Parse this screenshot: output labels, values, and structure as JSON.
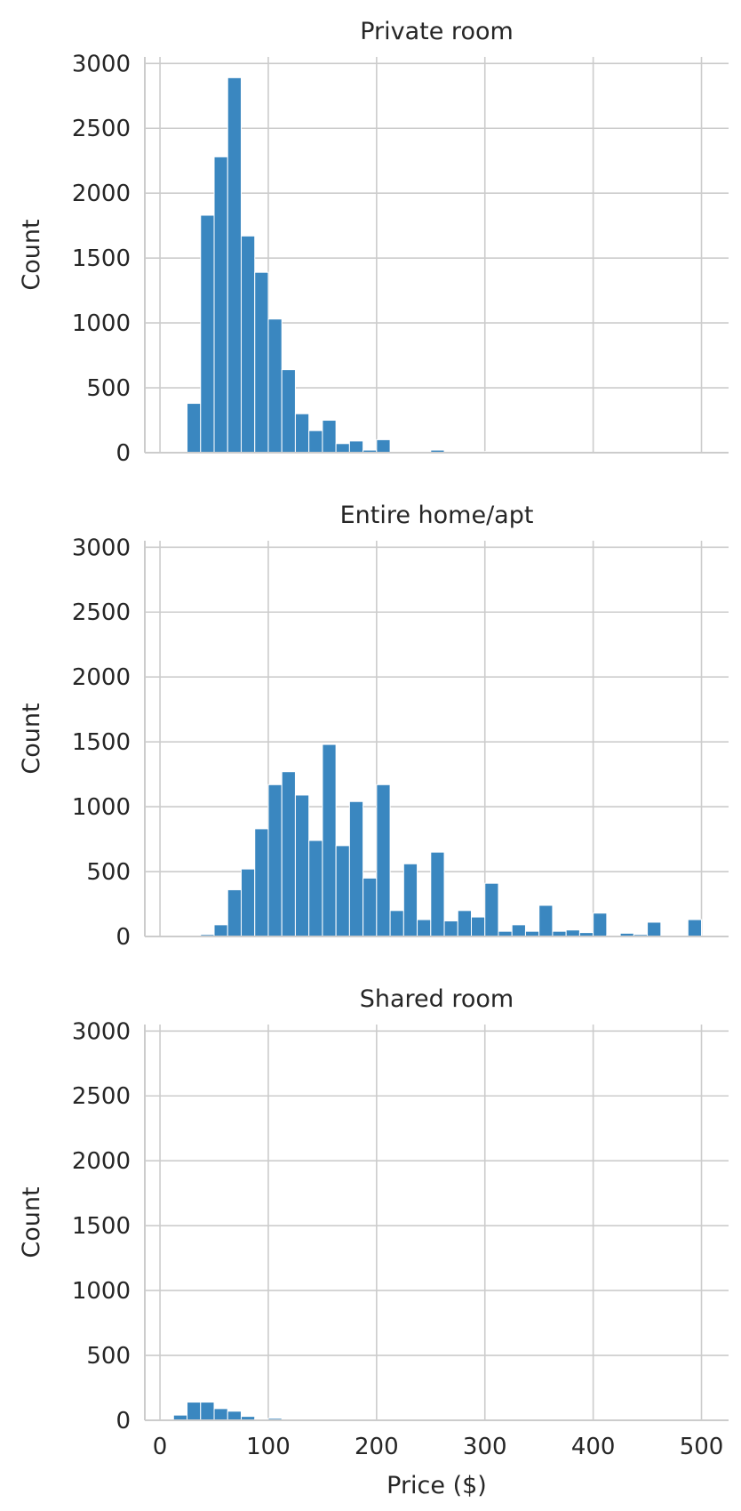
{
  "chart_data": {
    "type": "bar",
    "layout": "facet-rows",
    "xlabel": "Price ($)",
    "ylabel": "Count",
    "xlim": [
      -14,
      525
    ],
    "ylim": [
      0,
      3050
    ],
    "x_ticks": [
      0,
      100,
      200,
      300,
      400,
      500
    ],
    "y_ticks": [
      0,
      500,
      1000,
      1500,
      2000,
      2500,
      3000
    ],
    "bin_width": 12.5,
    "bin_edges_start": 0,
    "grid": true,
    "color": "#3a87c0",
    "panels": [
      {
        "title": "Private room",
        "values": [
          0,
          10,
          380,
          1830,
          2280,
          2890,
          1670,
          1390,
          1030,
          640,
          300,
          170,
          250,
          70,
          90,
          20,
          100,
          0,
          5,
          0,
          20,
          0,
          0,
          0,
          10,
          0,
          0,
          0,
          0,
          0,
          0,
          0,
          0,
          0,
          0,
          0,
          0,
          0,
          0,
          0
        ]
      },
      {
        "title": "Entire home/apt",
        "values": [
          0,
          5,
          0,
          15,
          90,
          360,
          520,
          830,
          1170,
          1270,
          1090,
          740,
          1480,
          700,
          1040,
          450,
          1170,
          200,
          560,
          130,
          650,
          120,
          200,
          150,
          410,
          40,
          90,
          40,
          240,
          40,
          50,
          30,
          180,
          10,
          25,
          15,
          110,
          0,
          5,
          130
        ]
      },
      {
        "title": "Shared room",
        "values": [
          0,
          40,
          140,
          140,
          90,
          70,
          30,
          10,
          15,
          2,
          0,
          0,
          0,
          0,
          0,
          0,
          0,
          0,
          0,
          0,
          0,
          0,
          0,
          0,
          0,
          0,
          0,
          0,
          0,
          0,
          0,
          0,
          0,
          0,
          0,
          0,
          0,
          0,
          0,
          0
        ]
      }
    ]
  }
}
